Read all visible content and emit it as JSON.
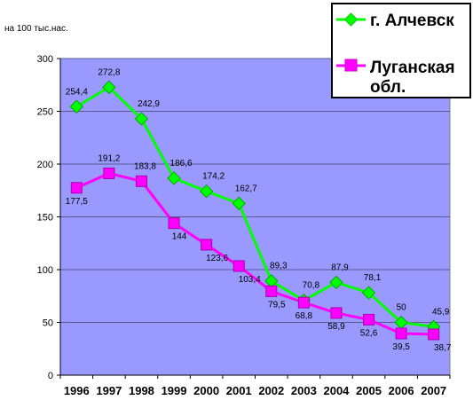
{
  "chart_data": {
    "type": "line",
    "title": "",
    "xlabel": "",
    "ylabel": "на 100 тыс.нас.",
    "x": [
      "1996",
      "1997",
      "1998",
      "1999",
      "2000",
      "2001",
      "2002",
      "2003",
      "2004",
      "2005",
      "2006",
      "2007"
    ],
    "ylim": [
      0,
      300
    ],
    "yticks": [
      "0",
      "50",
      "100",
      "150",
      "200",
      "250",
      "300"
    ],
    "grid": true,
    "legend_position": "top-right",
    "plot_background": "#9999ff",
    "series": [
      {
        "name": "г. Алчевск",
        "color": "#00ff00",
        "marker": "diamond",
        "values": [
          254.4,
          272.8,
          242.9,
          186.6,
          174.2,
          162.7,
          89.3,
          70.8,
          87.9,
          78.1,
          50,
          45.9
        ],
        "labels": [
          "254,4",
          "272,8",
          "242,9",
          "186,6",
          "174,2",
          "162,7",
          "89,3",
          "70,8",
          "87,9",
          "78,1",
          "50",
          "45,9"
        ]
      },
      {
        "name": "Луганская обл.",
        "color": "#ff00ff",
        "marker": "square",
        "values": [
          177.5,
          191.2,
          183.8,
          144,
          123.6,
          103.4,
          79.5,
          68.8,
          58.9,
          52.6,
          39.5,
          38.7
        ],
        "labels": [
          "177,5",
          "191,2",
          "183,8",
          "144",
          "123,6",
          "103,4",
          "79,5",
          "68,8",
          "58,9",
          "52,6",
          "39,5",
          "38,7"
        ]
      }
    ],
    "legend": {
      "line1": "г. Алчевск",
      "line2a": "Луганская",
      "line2b": "обл."
    }
  }
}
